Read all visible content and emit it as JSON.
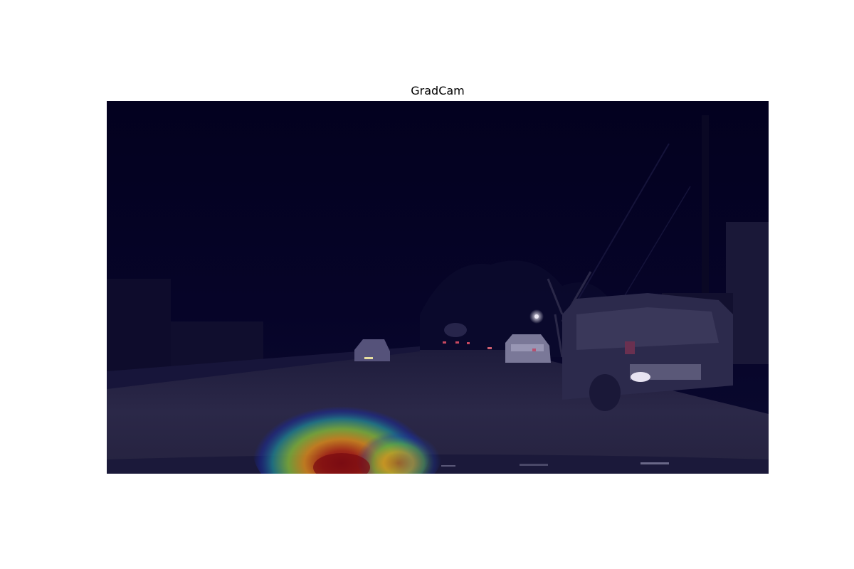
{
  "figure": {
    "title": "GradCam"
  },
  "image": {
    "description_colors": {
      "sky": "#040226",
      "road": "#2b2848",
      "heat_core": "#a01010",
      "heat_mid": "#e0a020",
      "heat_outer": "#3aa060",
      "heat_edge": "#1b2a9a"
    },
    "icon": "night-street-gradcam-heatmap"
  }
}
